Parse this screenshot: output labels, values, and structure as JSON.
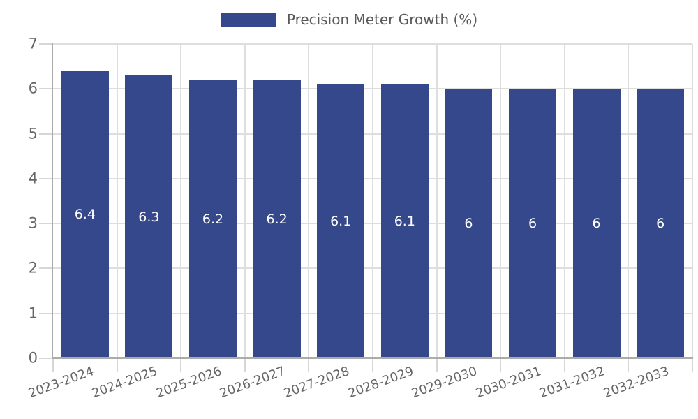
{
  "chart_data": {
    "type": "bar",
    "title": "",
    "legend_label": "Precision Meter Growth (%)",
    "legend_position": "top-center",
    "categories": [
      "2023-2024",
      "2024-2025",
      "2025-2026",
      "2026-2027",
      "2027-2028",
      "2028-2029",
      "2029-2030",
      "2030-2031",
      "2031-2032",
      "2032-2033"
    ],
    "values": [
      6.4,
      6.3,
      6.2,
      6.2,
      6.1,
      6.1,
      6,
      6,
      6,
      6
    ],
    "bar_labels": [
      "6.4",
      "6.3",
      "6.2",
      "6.2",
      "6.1",
      "6.1",
      "6",
      "6",
      "6",
      "6"
    ],
    "xlabel": "",
    "ylabel": "",
    "ylim": [
      0,
      7
    ],
    "yticks": [
      0,
      1,
      2,
      3,
      4,
      5,
      6,
      7
    ],
    "grid": true,
    "colors": {
      "bar": "#36488C",
      "bar_label_text": "#FFFFFF",
      "grid_line": "#DEDEDE",
      "axis_line": "#ABABAB",
      "tick_mark": "#D6D6D6",
      "tick_label_text": "#666666",
      "legend_text": "#595959",
      "background": "#FFFFFF"
    }
  }
}
